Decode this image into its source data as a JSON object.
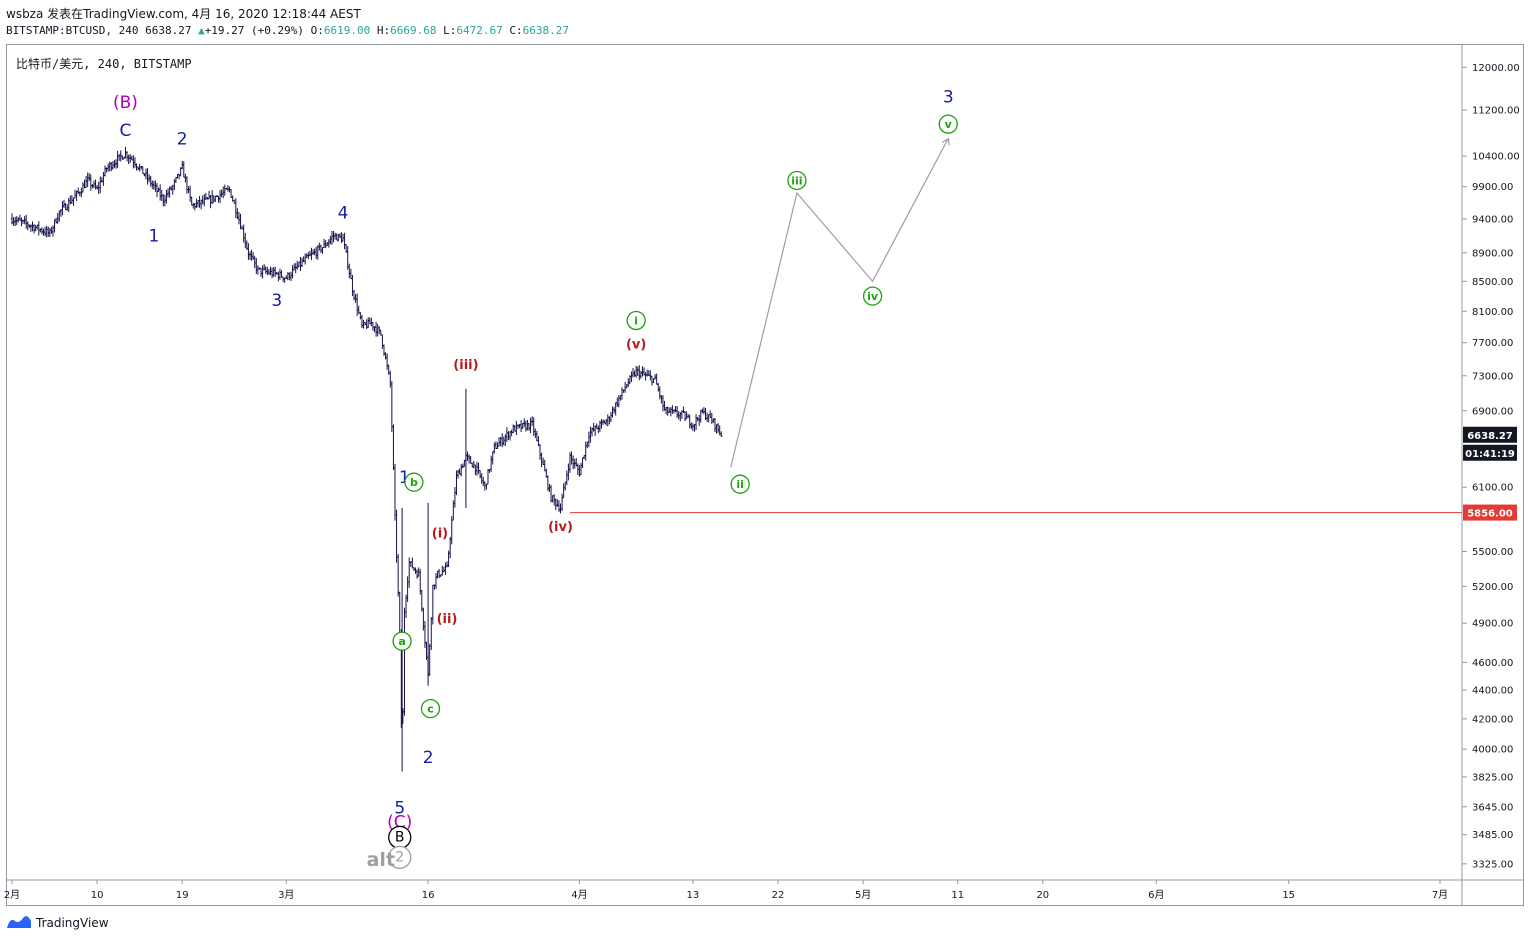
{
  "header": {
    "author": "wsbza",
    "published": "发表在TradingView.com, 4月 16, 2020 12:18:44 AEST",
    "ticker": "BITSTAMP:BTCUSD, 240",
    "last": "6638.27",
    "change": "+19.27 (+0.29%)",
    "o_label": "O:",
    "o_value": "6619.00",
    "h_label": "H:",
    "h_value": "6669.68",
    "l_label": "L:",
    "l_value": "6472.67",
    "c_label": "C:",
    "c_value": "6638.27"
  },
  "symbol_label": "比特币/美元, 240, BITSTAMP",
  "footer": {
    "brand": "TradingView"
  },
  "colors": {
    "candles": "#14124a",
    "blue_wave": "#1520a6",
    "red_wave": "#b71c1c",
    "green_wave": "#1aa30a",
    "magenta_wave": "#b000b5",
    "projection": "#9e9e9e",
    "support_line": "#e53935"
  },
  "chart_data": {
    "type": "candlestick",
    "symbol": "BITSTAMP:BTCUSD",
    "interval": "240",
    "y_axis": {
      "ticks": [
        3325,
        3485,
        3645,
        3825,
        4000,
        4200,
        4400,
        4600,
        4900,
        5200,
        5500,
        6100,
        6900,
        7300,
        7700,
        8100,
        8500,
        8900,
        9400,
        9900,
        10400,
        11200,
        12000
      ],
      "tick_labels": [
        "3325.00",
        "3485.00",
        "3645.00",
        "3825.00",
        "4000.00",
        "4200.00",
        "4400.00",
        "4600.00",
        "4900.00",
        "5200.00",
        "5500.00",
        "6100.00",
        "6900.00",
        "7300.00",
        "7700.00",
        "8100.00",
        "8500.00",
        "8900.00",
        "9400.00",
        "9900.00",
        "10400.00",
        "11200.00",
        "12000.00"
      ],
      "scale": "log",
      "range": [
        3250,
        12300
      ]
    },
    "x_axis": {
      "tick_labels": [
        "2月",
        "10",
        "19",
        "3月",
        "16",
        "4月",
        "13",
        "22",
        "5月",
        "11",
        "20",
        "6月",
        "15",
        "7月"
      ],
      "tick_dates": [
        "2020-02-01",
        "2020-02-10",
        "2020-02-19",
        "2020-03-01",
        "2020-03-16",
        "2020-04-01",
        "2020-04-13",
        "2020-04-22",
        "2020-05-01",
        "2020-05-11",
        "2020-05-20",
        "2020-06-01",
        "2020-06-15",
        "2020-07-01"
      ],
      "range": [
        "2020-02-01",
        "2020-07-01"
      ]
    },
    "price_path": [
      [
        "2020-02-01",
        9400
      ],
      [
        "2020-02-03",
        9300
      ],
      [
        "2020-02-05",
        9180
      ],
      [
        "2020-02-06",
        9500
      ],
      [
        "2020-02-08",
        9800
      ],
      [
        "2020-02-09",
        10000
      ],
      [
        "2020-02-10",
        9850
      ],
      [
        "2020-02-11",
        10200
      ],
      [
        "2020-02-13",
        10450
      ],
      [
        "2020-02-14",
        10300
      ],
      [
        "2020-02-15",
        10100
      ],
      [
        "2020-02-17",
        9700
      ],
      [
        "2020-02-18",
        9900
      ],
      [
        "2020-02-19",
        10200
      ],
      [
        "2020-02-20",
        9600
      ],
      [
        "2020-02-22",
        9700
      ],
      [
        "2020-02-24",
        9850
      ],
      [
        "2020-02-25",
        9400
      ],
      [
        "2020-02-26",
        8900
      ],
      [
        "2020-02-27",
        8650
      ],
      [
        "2020-02-29",
        8600
      ],
      [
        "2020-03-01",
        8550
      ],
      [
        "2020-03-03",
        8800
      ],
      [
        "2020-03-05",
        9000
      ],
      [
        "2020-03-06",
        9150
      ],
      [
        "2020-03-07",
        9100
      ],
      [
        "2020-03-08",
        8400
      ],
      [
        "2020-03-09",
        7900
      ],
      [
        "2020-03-10",
        7950
      ],
      [
        "2020-03-11",
        7800
      ],
      [
        "2020-03-12",
        7200
      ],
      [
        "2020-03-12T12",
        5800
      ],
      [
        "2020-03-13",
        4800
      ],
      [
        "2020-03-13T06",
        3858
      ],
      [
        "2020-03-13T12",
        5000
      ],
      [
        "2020-03-14",
        5400
      ],
      [
        "2020-03-15",
        5300
      ],
      [
        "2020-03-16",
        4500
      ],
      [
        "2020-03-16T12",
        5200
      ],
      [
        "2020-03-17",
        5300
      ],
      [
        "2020-03-18",
        5350
      ],
      [
        "2020-03-19",
        6200
      ],
      [
        "2020-03-20",
        6400
      ],
      [
        "2020-03-21",
        6300
      ],
      [
        "2020-03-22",
        6100
      ],
      [
        "2020-03-23",
        6500
      ],
      [
        "2020-03-25",
        6700
      ],
      [
        "2020-03-27",
        6750
      ],
      [
        "2020-03-29",
        6000
      ],
      [
        "2020-03-30",
        5900
      ],
      [
        "2020-03-31",
        6400
      ],
      [
        "2020-04-01",
        6250
      ],
      [
        "2020-04-02",
        6650
      ],
      [
        "2020-04-04",
        6800
      ],
      [
        "2020-04-06",
        7200
      ],
      [
        "2020-04-07",
        7350
      ],
      [
        "2020-04-08",
        7300
      ],
      [
        "2020-04-09",
        7250
      ],
      [
        "2020-04-10",
        6900
      ],
      [
        "2020-04-12",
        6850
      ],
      [
        "2020-04-13",
        6750
      ],
      [
        "2020-04-14",
        6880
      ],
      [
        "2020-04-15",
        6800
      ],
      [
        "2020-04-16",
        6638.27
      ]
    ],
    "projection_path": [
      [
        "2020-04-17",
        6300
      ],
      [
        "2020-04-24",
        9800
      ],
      [
        "2020-05-02",
        8500
      ],
      [
        "2020-05-10",
        10700
      ]
    ],
    "horizontal_line": {
      "price": 5856,
      "label": "5856.00",
      "from": "2020-03-31"
    },
    "price_labels": [
      {
        "text": "6638.27",
        "price": 6638.27
      },
      {
        "text": "01:41:19",
        "price": 6500
      }
    ],
    "wave_labels": [
      {
        "text": "(B)",
        "date": "2020-02-13",
        "price": 11350,
        "style": "magenta"
      },
      {
        "text": "C",
        "date": "2020-02-13",
        "price": 10850,
        "style": "blue"
      },
      {
        "text": "2",
        "date": "2020-02-19",
        "price": 10700,
        "style": "blue"
      },
      {
        "text": "1",
        "date": "2020-02-16",
        "price": 9150,
        "style": "blue"
      },
      {
        "text": "4",
        "date": "2020-03-07",
        "price": 9500,
        "style": "blue"
      },
      {
        "text": "3",
        "date": "2020-02-29",
        "price": 8250,
        "style": "blue"
      },
      {
        "text": "1",
        "date": "2020-03-13T12",
        "price": 6200,
        "style": "blue"
      },
      {
        "text": "2",
        "date": "2020-03-16",
        "price": 3950,
        "style": "blue"
      },
      {
        "text": "5",
        "date": "2020-03-13",
        "price": 3640,
        "style": "blue"
      },
      {
        "text": "(C)",
        "date": "2020-03-13",
        "price": 3560,
        "style": "magenta"
      },
      {
        "text": "B",
        "date": "2020-03-13",
        "price": 3470,
        "style": "circle-black"
      },
      {
        "text": "2",
        "date": "2020-03-13",
        "price": 3360,
        "style": "circle-gray"
      },
      {
        "text": "alt",
        "date": "2020-03-11",
        "price": 3345,
        "style": "gray-bold"
      },
      {
        "text": "b",
        "date": "2020-03-14T12",
        "price": 6150,
        "style": "circle-green"
      },
      {
        "text": "a",
        "date": "2020-03-13T06",
        "price": 4760,
        "style": "circle-green"
      },
      {
        "text": "c",
        "date": "2020-03-16T06",
        "price": 4270,
        "style": "circle-green"
      },
      {
        "text": "(i)",
        "date": "2020-03-17T06",
        "price": 5680,
        "style": "red"
      },
      {
        "text": "(ii)",
        "date": "2020-03-18",
        "price": 4950,
        "style": "red"
      },
      {
        "text": "(iii)",
        "date": "2020-03-20",
        "price": 7450,
        "style": "red"
      },
      {
        "text": "(iv)",
        "date": "2020-03-30",
        "price": 5740,
        "style": "red"
      },
      {
        "text": "(v)",
        "date": "2020-04-07",
        "price": 7700,
        "style": "red"
      },
      {
        "text": "i",
        "date": "2020-04-07",
        "price": 7980,
        "style": "circle-green"
      },
      {
        "text": "ii",
        "date": "2020-04-18",
        "price": 6130,
        "style": "circle-green"
      },
      {
        "text": "iii",
        "date": "2020-04-24",
        "price": 10000,
        "style": "circle-green"
      },
      {
        "text": "iv",
        "date": "2020-05-02",
        "price": 8300,
        "style": "circle-green"
      },
      {
        "text": "v",
        "date": "2020-05-10",
        "price": 10950,
        "style": "circle-green"
      },
      {
        "text": "3",
        "date": "2020-05-10",
        "price": 11450,
        "style": "blue"
      }
    ]
  }
}
